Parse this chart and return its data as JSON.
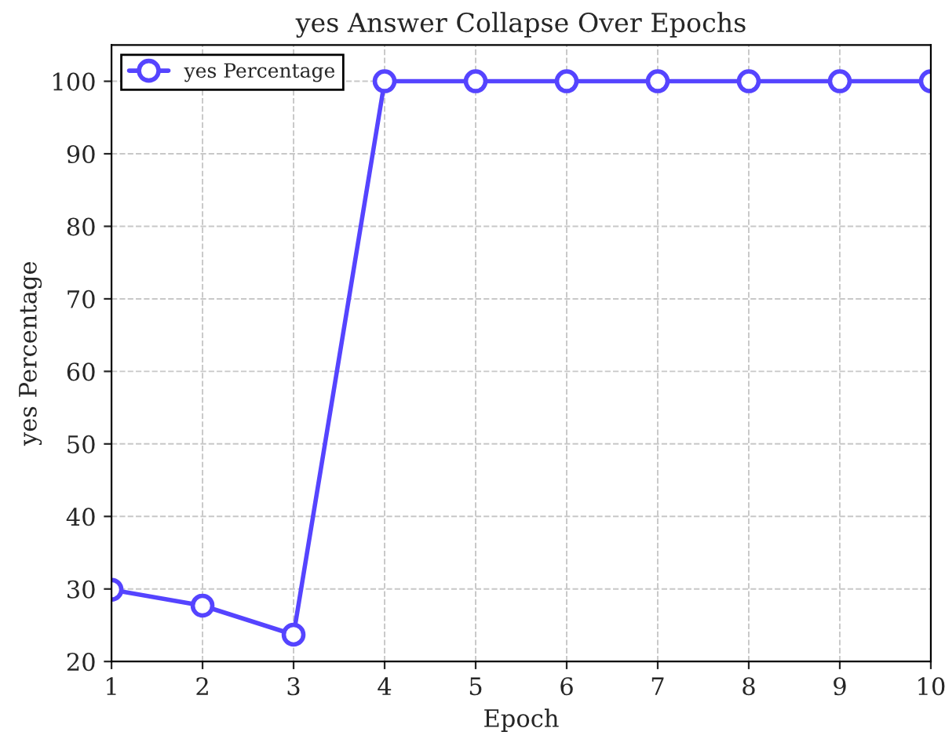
{
  "chart_data": {
    "type": "line",
    "title": "yes Answer Collapse Over Epochs",
    "xlabel": "Epoch",
    "ylabel": "yes Percentage",
    "x": [
      1,
      2,
      3,
      4,
      5,
      6,
      7,
      8,
      9,
      10
    ],
    "series": [
      {
        "name": "yes Percentage",
        "color": "#5544ff",
        "values": [
          29.9,
          27.7,
          23.7,
          100,
          100,
          100,
          100,
          100,
          100,
          100
        ]
      }
    ],
    "xlim": [
      1,
      10
    ],
    "xticks": [
      1,
      2,
      3,
      4,
      5,
      6,
      7,
      8,
      9,
      10
    ],
    "ylim": [
      20,
      105
    ],
    "yticks": [
      20,
      30,
      40,
      50,
      60,
      70,
      80,
      90,
      100
    ],
    "grid": true,
    "legend": "top left",
    "marker": "circle",
    "line_style": "solid"
  }
}
